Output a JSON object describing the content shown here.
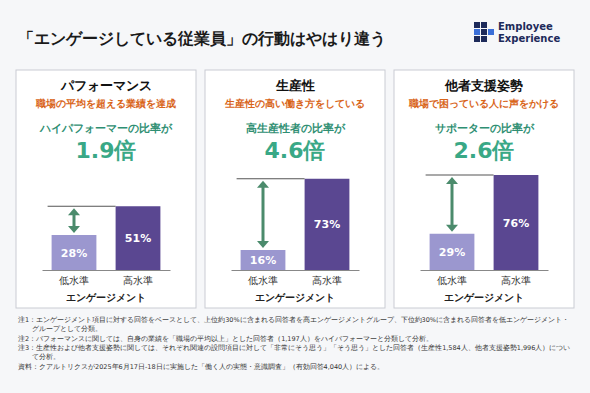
{
  "title": "「エンゲージしている従業員」の行動はやはり違う",
  "logo": [
    "Employee",
    "Experience"
  ],
  "chart_data": [
    {
      "type": "bar",
      "title": "パフォーマンス",
      "subtitle": "職場の平均を超える業績を達成",
      "annotation": "ハイパフォーマーの比率が",
      "ratio_label": "1.9倍",
      "categories": [
        "低水準",
        "高水準"
      ],
      "values": [
        28,
        51
      ],
      "value_labels": [
        "28%",
        "51%"
      ],
      "colors": [
        "#9b97cf",
        "#5a4791"
      ],
      "x_label": "エンゲージメント",
      "ylim": [
        0,
        80
      ],
      "data_labels": true,
      "tick_labels": "x"
    },
    {
      "type": "bar",
      "title": "生産性",
      "subtitle": "生産性の高い働き方をしている",
      "annotation": "高生産性者の比率が",
      "ratio_label": "4.6倍",
      "categories": [
        "低水準",
        "高水準"
      ],
      "values": [
        16,
        73
      ],
      "value_labels": [
        "16%",
        "73%"
      ],
      "colors": [
        "#9b97cf",
        "#5a4791"
      ],
      "x_label": "エンゲージメント",
      "ylim": [
        0,
        80
      ],
      "data_labels": true,
      "tick_labels": "x"
    },
    {
      "type": "bar",
      "title": "他者支援姿勢",
      "subtitle": "職場で困っている人に声をかける",
      "annotation": "サポーターの比率が",
      "ratio_label": "2.6倍",
      "categories": [
        "低水準",
        "高水準"
      ],
      "values": [
        29,
        76
      ],
      "value_labels": [
        "29%",
        "76%"
      ],
      "colors": [
        "#9b97cf",
        "#5a4791"
      ],
      "x_label": "エンゲージメント",
      "ylim": [
        0,
        80
      ],
      "data_labels": true,
      "tick_labels": "x"
    }
  ],
  "footnotes": [
    "注1：エンゲージメント項目に対する回答をベースとして、上位約30%に含まれる回答者を高エンゲージメントグループ、下位約30%に含まれる回答者を低エンゲージメント・グループとして分類。",
    "注2：パフォーマンスに関しては、自身の業績を「職場の平均以上」とした回答者（1,197人）をハイパフォーマーと分類して分析。",
    "注3：生産性および他者支援姿勢に関しては、それぞれ関連の設問項目に対して「非常にそう思う」「そう思う」とした回答者（生産性1,584人、他者支援姿勢1,996人）について分析。",
    "資料：クアルトリクスが2025年6月17日-18日に実施した「働く人の実態・意識調査」（有効回答4,040人）による。"
  ]
}
